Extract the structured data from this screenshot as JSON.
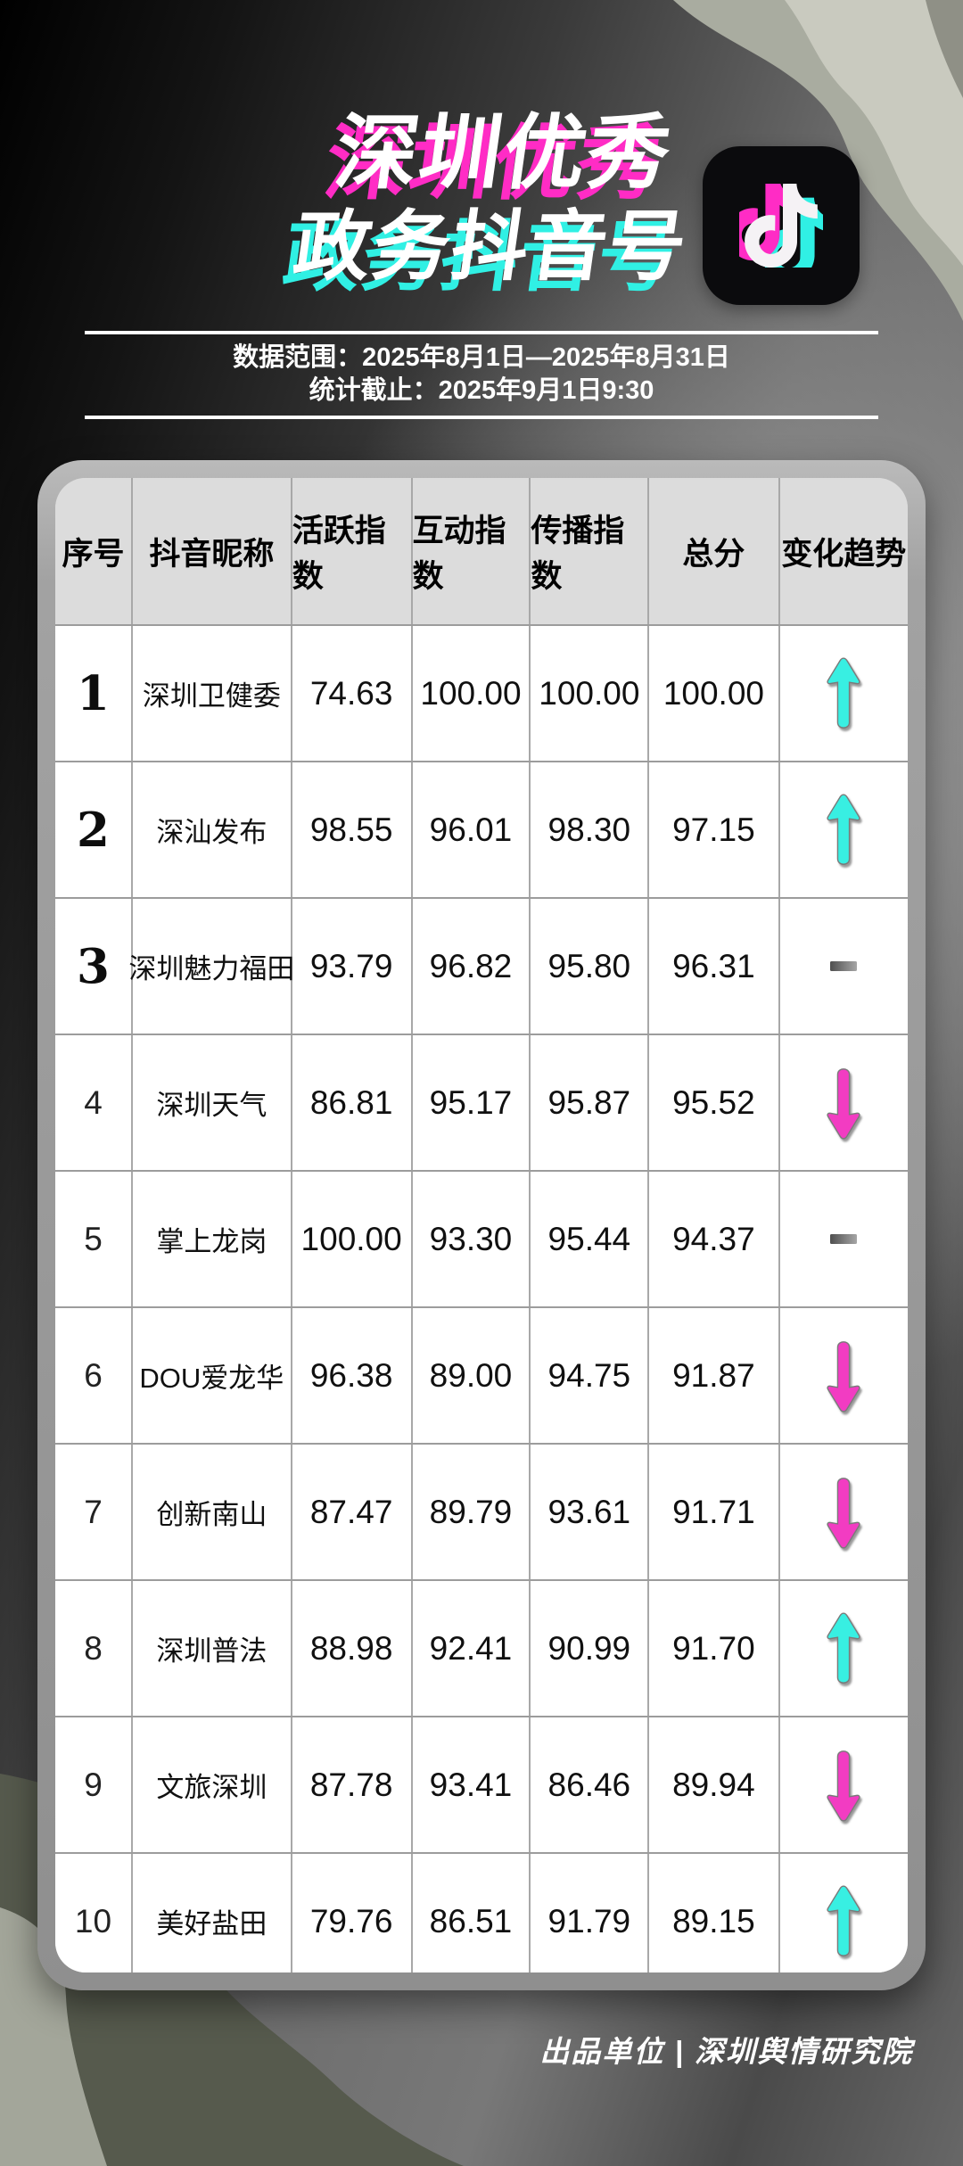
{
  "poster": {
    "title_line1": "深圳优秀",
    "title_line2": "政务抖音号",
    "meta_line1": "数据范围：2025年8月1日—2025年8月31日",
    "meta_line2": "统计截止：2025年9月1日9:30",
    "footer": "出品单位 | 深圳舆情研究院"
  },
  "colors": {
    "magenta": "#FF2CC5",
    "cyan": "#30F0E4",
    "trend_up": "#38EFE2",
    "trend_down": "#F23CC2",
    "flat_dark": "#4F4F4F",
    "flat_light": "#A6A6A6"
  },
  "table": {
    "headers": [
      "序号",
      "抖音昵称",
      "活跃指数",
      "互动指数",
      "传播指数",
      "总分",
      "变化趋势"
    ],
    "rows": [
      {
        "rank": "1",
        "name": "深圳卫健委",
        "active": "74.63",
        "interact": "100.00",
        "spread": "100.00",
        "total": "100.00",
        "trend": "up"
      },
      {
        "rank": "2",
        "name": "深汕发布",
        "active": "98.55",
        "interact": "96.01",
        "spread": "98.30",
        "total": "97.15",
        "trend": "up"
      },
      {
        "rank": "3",
        "name": "深圳魅力福田",
        "active": "93.79",
        "interact": "96.82",
        "spread": "95.80",
        "total": "96.31",
        "trend": "flat"
      },
      {
        "rank": "4",
        "name": "深圳天气",
        "active": "86.81",
        "interact": "95.17",
        "spread": "95.87",
        "total": "95.52",
        "trend": "down"
      },
      {
        "rank": "5",
        "name": "掌上龙岗",
        "active": "100.00",
        "interact": "93.30",
        "spread": "95.44",
        "total": "94.37",
        "trend": "flat"
      },
      {
        "rank": "6",
        "name": "DOU爱龙华",
        "active": "96.38",
        "interact": "89.00",
        "spread": "94.75",
        "total": "91.87",
        "trend": "down"
      },
      {
        "rank": "7",
        "name": "创新南山",
        "active": "87.47",
        "interact": "89.79",
        "spread": "93.61",
        "total": "91.71",
        "trend": "down"
      },
      {
        "rank": "8",
        "name": "深圳普法",
        "active": "88.98",
        "interact": "92.41",
        "spread": "90.99",
        "total": "91.70",
        "trend": "up"
      },
      {
        "rank": "9",
        "name": "文旅深圳",
        "active": "87.78",
        "interact": "93.41",
        "spread": "86.46",
        "total": "89.94",
        "trend": "down"
      },
      {
        "rank": "10",
        "name": "美好盐田",
        "active": "79.76",
        "interact": "86.51",
        "spread": "91.79",
        "total": "89.15",
        "trend": "up"
      }
    ]
  },
  "chart_data": {
    "type": "table",
    "title": "深圳优秀政务抖音号",
    "subtitle_range": "数据范围：2025年8月1日—2025年8月31日",
    "subtitle_cutoff": "统计截止：2025年9月1日9:30",
    "columns": [
      "序号",
      "抖音昵称",
      "活跃指数",
      "互动指数",
      "传播指数",
      "总分",
      "变化趋势"
    ],
    "rows": [
      [
        1,
        "深圳卫健委",
        74.63,
        100.0,
        100.0,
        100.0,
        "up"
      ],
      [
        2,
        "深汕发布",
        98.55,
        96.01,
        98.3,
        97.15,
        "up"
      ],
      [
        3,
        "深圳魅力福田",
        93.79,
        96.82,
        95.8,
        96.31,
        "flat"
      ],
      [
        4,
        "深圳天气",
        86.81,
        95.17,
        95.87,
        95.52,
        "down"
      ],
      [
        5,
        "掌上龙岗",
        100.0,
        93.3,
        95.44,
        94.37,
        "flat"
      ],
      [
        6,
        "DOU爱龙华",
        96.38,
        89.0,
        94.75,
        91.87,
        "down"
      ],
      [
        7,
        "创新南山",
        87.47,
        89.79,
        93.61,
        91.71,
        "down"
      ],
      [
        8,
        "深圳普法",
        88.98,
        92.41,
        90.99,
        91.7,
        "up"
      ],
      [
        9,
        "文旅深圳",
        87.78,
        93.41,
        86.46,
        89.94,
        "down"
      ],
      [
        10,
        "美好盐田",
        79.76,
        86.51,
        91.79,
        89.15,
        "up"
      ]
    ]
  }
}
